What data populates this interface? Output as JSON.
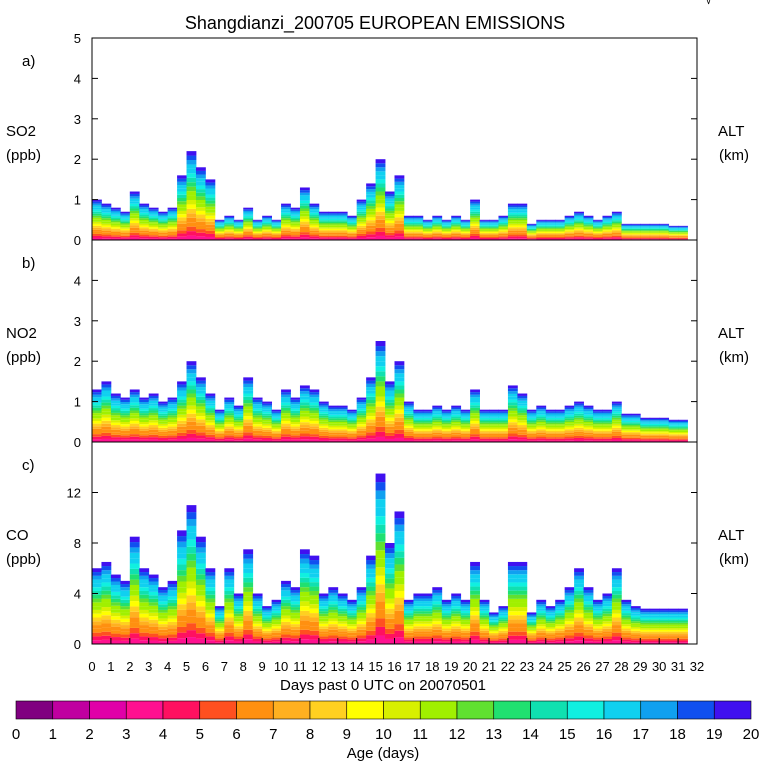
{
  "title": "Shangdianzi_200705 EUROPEAN EMISSIONS",
  "corner_mark": "√",
  "xlabel": "Days past 0 UTC on 20070501",
  "x_ticks": [
    "0",
    "1",
    "2",
    "3",
    "4",
    "5",
    "6",
    "7",
    "8",
    "9",
    "10",
    "11",
    "12",
    "13",
    "14",
    "15",
    "16",
    "17",
    "18",
    "19",
    "20",
    "21",
    "22",
    "23",
    "24",
    "25",
    "26",
    "27",
    "28",
    "29",
    "30",
    "31",
    "32"
  ],
  "colorbar": {
    "label": "Age (days)",
    "ticks": [
      "0",
      "1",
      "2",
      "3",
      "4",
      "5",
      "6",
      "7",
      "8",
      "9",
      "10",
      "11",
      "12",
      "13",
      "14",
      "15",
      "16",
      "17",
      "18",
      "19",
      "20"
    ],
    "colors": [
      "#800080",
      "#c000a0",
      "#e000a8",
      "#ff1090",
      "#ff1060",
      "#ff5020",
      "#ff9010",
      "#ffb020",
      "#ffd020",
      "#ffff00",
      "#d8f000",
      "#a0f000",
      "#60e030",
      "#20e070",
      "#10e0b0",
      "#10f0e0",
      "#10d0f0",
      "#10a0f0",
      "#1050f0",
      "#4010f0"
    ]
  },
  "panels": [
    {
      "letter": "a)",
      "species": "SO2",
      "unit": "(ppb)",
      "right_label": "ALT",
      "right_unit": "(km)",
      "ymax": 5,
      "yticks": [
        "0",
        "1",
        "2",
        "3",
        "4",
        "5"
      ],
      "ytick_values": [
        0,
        1,
        2,
        3,
        4,
        5
      ]
    },
    {
      "letter": "b)",
      "species": "NO2",
      "unit": "(ppb)",
      "right_label": "ALT",
      "right_unit": "(km)",
      "ymax": 5,
      "yticks": [
        "0",
        "1",
        "2",
        "3",
        "4"
      ],
      "ytick_values": [
        0,
        1,
        2,
        3,
        4
      ]
    },
    {
      "letter": "c)",
      "species": "CO",
      "unit": "(ppb)",
      "right_label": "ALT",
      "right_unit": "(km)",
      "ymax": 16,
      "yticks": [
        "0",
        "4",
        "8",
        "12"
      ],
      "ytick_values": [
        0,
        4,
        8,
        12
      ]
    }
  ],
  "chart_data": {
    "type": "area",
    "title": "Shangdianzi_200705 EUROPEAN EMISSIONS",
    "xlabel": "Days past 0 UTC on 20070501",
    "x_range": [
      0,
      32
    ],
    "data_x_end": 31,
    "color_variable": "Age (days)",
    "color_range": [
      0,
      20
    ],
    "series": [
      {
        "name": "SO2",
        "unit": "ppb",
        "ylim": [
          0,
          5
        ],
        "x": [
          0,
          0.5,
          1,
          1.5,
          2,
          2.5,
          3,
          3.5,
          4,
          4.5,
          5,
          5.5,
          6,
          6.5,
          7,
          7.5,
          8,
          8.5,
          9,
          9.5,
          10,
          10.5,
          11,
          11.5,
          12,
          12.5,
          13,
          13.5,
          14,
          14.5,
          15,
          15.5,
          16,
          16.5,
          17,
          17.5,
          18,
          18.5,
          19,
          19.5,
          20,
          20.5,
          21,
          21.5,
          22,
          22.5,
          23,
          23.5,
          24,
          24.5,
          25,
          25.5,
          26,
          26.5,
          27,
          27.5,
          28,
          28.5,
          29,
          29.5,
          30,
          30.5,
          31
        ],
        "values": [
          1.0,
          0.9,
          0.8,
          0.7,
          1.2,
          0.9,
          0.8,
          0.7,
          0.8,
          1.6,
          2.2,
          1.8,
          1.5,
          0.5,
          0.6,
          0.5,
          0.8,
          0.5,
          0.6,
          0.5,
          0.9,
          0.8,
          1.3,
          0.9,
          0.7,
          0.7,
          0.7,
          0.6,
          1.0,
          1.4,
          2.0,
          1.2,
          1.6,
          0.6,
          0.6,
          0.5,
          0.6,
          0.5,
          0.6,
          0.5,
          1.0,
          0.5,
          0.5,
          0.6,
          0.9,
          0.9,
          0.4,
          0.5,
          0.5,
          0.5,
          0.6,
          0.7,
          0.6,
          0.5,
          0.6,
          0.7,
          0.4,
          0.4,
          0.4,
          0.4,
          0.4,
          0.35,
          0.35
        ]
      },
      {
        "name": "NO2",
        "unit": "ppb",
        "ylim": [
          0,
          5
        ],
        "x": [
          0,
          0.5,
          1,
          1.5,
          2,
          2.5,
          3,
          3.5,
          4,
          4.5,
          5,
          5.5,
          6,
          6.5,
          7,
          7.5,
          8,
          8.5,
          9,
          9.5,
          10,
          10.5,
          11,
          11.5,
          12,
          12.5,
          13,
          13.5,
          14,
          14.5,
          15,
          15.5,
          16,
          16.5,
          17,
          17.5,
          18,
          18.5,
          19,
          19.5,
          20,
          20.5,
          21,
          21.5,
          22,
          22.5,
          23,
          23.5,
          24,
          24.5,
          25,
          25.5,
          26,
          26.5,
          27,
          27.5,
          28,
          28.5,
          29,
          29.5,
          30,
          30.5,
          31
        ],
        "values": [
          1.3,
          1.5,
          1.2,
          1.1,
          1.3,
          1.1,
          1.2,
          1.0,
          1.1,
          1.5,
          2.0,
          1.6,
          1.2,
          0.8,
          1.1,
          0.9,
          1.6,
          1.1,
          1.0,
          0.8,
          1.3,
          1.1,
          1.4,
          1.3,
          1.0,
          0.9,
          0.9,
          0.8,
          1.1,
          1.6,
          2.5,
          1.5,
          2.0,
          1.0,
          0.8,
          0.8,
          0.9,
          0.8,
          0.9,
          0.8,
          1.3,
          0.8,
          0.8,
          0.8,
          1.4,
          1.2,
          0.8,
          0.9,
          0.8,
          0.8,
          0.9,
          1.0,
          0.9,
          0.8,
          0.8,
          1.0,
          0.7,
          0.7,
          0.6,
          0.6,
          0.6,
          0.55,
          0.55
        ]
      },
      {
        "name": "CO",
        "unit": "ppb",
        "ylim": [
          0,
          16
        ],
        "x": [
          0,
          0.5,
          1,
          1.5,
          2,
          2.5,
          3,
          3.5,
          4,
          4.5,
          5,
          5.5,
          6,
          6.5,
          7,
          7.5,
          8,
          8.5,
          9,
          9.5,
          10,
          10.5,
          11,
          11.5,
          12,
          12.5,
          13,
          13.5,
          14,
          14.5,
          15,
          15.5,
          16,
          16.5,
          17,
          17.5,
          18,
          18.5,
          19,
          19.5,
          20,
          20.5,
          21,
          21.5,
          22,
          22.5,
          23,
          23.5,
          24,
          24.5,
          25,
          25.5,
          26,
          26.5,
          27,
          27.5,
          28,
          28.5,
          29,
          29.5,
          30,
          30.5,
          31
        ],
        "values": [
          6.0,
          6.5,
          5.5,
          5.0,
          8.5,
          6.0,
          5.5,
          4.5,
          5.0,
          9.0,
          11.0,
          8.5,
          6.0,
          3.0,
          6.0,
          4.0,
          7.5,
          4.0,
          3.0,
          3.5,
          5.0,
          4.5,
          7.5,
          7.0,
          4.0,
          4.5,
          4.0,
          3.5,
          4.5,
          7.0,
          13.5,
          8.0,
          10.5,
          3.5,
          4.0,
          4.0,
          4.5,
          3.5,
          4.0,
          3.5,
          6.5,
          3.5,
          2.5,
          3.0,
          6.5,
          6.5,
          2.5,
          3.5,
          3.0,
          3.5,
          4.5,
          6.0,
          4.5,
          3.5,
          4.0,
          6.0,
          3.5,
          3.0,
          2.8,
          2.8,
          2.8,
          2.8,
          2.8
        ]
      }
    ]
  }
}
